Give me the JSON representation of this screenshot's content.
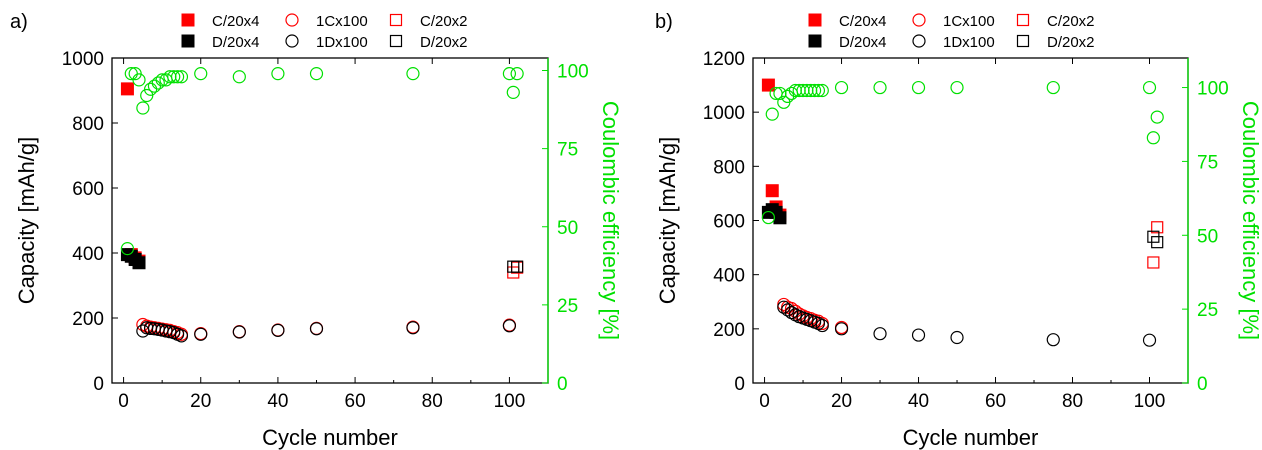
{
  "colors": {
    "red": "#ff0000",
    "black": "#000000",
    "green": "#00e000"
  },
  "chart_data": [
    {
      "type": "scatter",
      "panel_label": "a)",
      "xlabel": "Cycle number",
      "ylabel": "Capacity [mAh/g]",
      "y2label": "Coulombic efficiency [%]",
      "xlim": [
        -3,
        110
      ],
      "ylim": [
        0,
        1000
      ],
      "y2lim": [
        0,
        104
      ],
      "xticks": [
        0,
        20,
        40,
        60,
        80,
        100
      ],
      "yticks": [
        0,
        200,
        400,
        600,
        800,
        1000
      ],
      "y2ticks": [
        0,
        25,
        50,
        75,
        100
      ],
      "legend": [
        "C/20x4",
        "1Cx100",
        "C/20x2",
        "D/20x4",
        "1Dx100",
        "D/20x2"
      ],
      "series": [
        {
          "name": "C/20x4",
          "marker": "square-filled",
          "color": "red",
          "axis": "left",
          "points": [
            [
              1,
              905
            ],
            [
              2,
              395
            ],
            [
              3,
              385
            ],
            [
              4,
              375
            ]
          ]
        },
        {
          "name": "D/20x4",
          "marker": "square-filled",
          "color": "black",
          "axis": "left",
          "points": [
            [
              1,
              395
            ],
            [
              2,
              390
            ],
            [
              3,
              380
            ],
            [
              4,
              370
            ]
          ]
        },
        {
          "name": "1Cx100",
          "marker": "circle-open",
          "color": "red",
          "axis": "left",
          "points": [
            [
              5,
              180
            ],
            [
              6,
              175
            ],
            [
              7,
              172
            ],
            [
              8,
              170
            ],
            [
              9,
              168
            ],
            [
              10,
              166
            ],
            [
              11,
              164
            ],
            [
              12,
              162
            ],
            [
              13,
              158
            ],
            [
              14,
              155
            ],
            [
              15,
              150
            ],
            [
              20,
              152
            ],
            [
              30,
              158
            ],
            [
              40,
              163
            ],
            [
              50,
              168
            ],
            [
              75,
              172
            ],
            [
              100,
              178
            ]
          ]
        },
        {
          "name": "1Dx100",
          "marker": "circle-open",
          "color": "black",
          "axis": "left",
          "points": [
            [
              5,
              160
            ],
            [
              6,
              170
            ],
            [
              7,
              168
            ],
            [
              8,
              167
            ],
            [
              9,
              165
            ],
            [
              10,
              163
            ],
            [
              11,
              160
            ],
            [
              12,
              158
            ],
            [
              13,
              155
            ],
            [
              14,
              150
            ],
            [
              15,
              145
            ],
            [
              20,
              150
            ],
            [
              30,
              157
            ],
            [
              40,
              162
            ],
            [
              50,
              167
            ],
            [
              75,
              170
            ],
            [
              100,
              176
            ]
          ]
        },
        {
          "name": "C/20x2",
          "marker": "square-open",
          "color": "red",
          "axis": "left",
          "points": [
            [
              101,
              340
            ],
            [
              102,
              355
            ]
          ]
        },
        {
          "name": "D/20x2",
          "marker": "square-open",
          "color": "black",
          "axis": "left",
          "points": [
            [
              101,
              358
            ],
            [
              102,
              358
            ]
          ]
        },
        {
          "name": "",
          "marker": "circle-open",
          "color": "green",
          "axis": "right",
          "points": [
            [
              1,
              43
            ],
            [
              2,
              99
            ],
            [
              3,
              99
            ],
            [
              4,
              97
            ],
            [
              5,
              88
            ],
            [
              6,
              92
            ],
            [
              7,
              94
            ],
            [
              8,
              95
            ],
            [
              9,
              96
            ],
            [
              10,
              97
            ],
            [
              11,
              97
            ],
            [
              12,
              98
            ],
            [
              13,
              98
            ],
            [
              14,
              98
            ],
            [
              15,
              98
            ],
            [
              20,
              99
            ],
            [
              30,
              98
            ],
            [
              40,
              99
            ],
            [
              50,
              99
            ],
            [
              75,
              99
            ],
            [
              100,
              99
            ],
            [
              101,
              93
            ],
            [
              102,
              99
            ]
          ]
        }
      ]
    },
    {
      "type": "scatter",
      "panel_label": "b)",
      "xlabel": "Cycle number",
      "ylabel": "Capacity [mAh/g]",
      "y2label": "Coulombic efficiency [%]",
      "xlim": [
        -3,
        110
      ],
      "ylim": [
        0,
        1200
      ],
      "y2lim": [
        0,
        110
      ],
      "xticks": [
        0,
        20,
        40,
        60,
        80,
        100
      ],
      "yticks": [
        0,
        200,
        400,
        600,
        800,
        1000,
        1200
      ],
      "y2ticks": [
        0,
        25,
        50,
        75,
        100
      ],
      "legend": [
        "C/20x4",
        "1Cx100",
        "C/20x2",
        "D/20x4",
        "1Dx100",
        "D/20x2"
      ],
      "series": [
        {
          "name": "C/20x4",
          "marker": "square-filled",
          "color": "red",
          "axis": "left",
          "points": [
            [
              1,
              1100
            ],
            [
              2,
              710
            ],
            [
              3,
              650
            ],
            [
              4,
              620
            ]
          ]
        },
        {
          "name": "D/20x4",
          "marker": "square-filled",
          "color": "black",
          "axis": "left",
          "points": [
            [
              1,
              630
            ],
            [
              2,
              640
            ],
            [
              3,
              630
            ],
            [
              4,
              610
            ]
          ]
        },
        {
          "name": "1Cx100",
          "marker": "circle-open",
          "color": "red",
          "axis": "left",
          "points": [
            [
              5,
              290
            ],
            [
              6,
              280
            ],
            [
              7,
              275
            ],
            [
              8,
              265
            ],
            [
              9,
              255
            ],
            [
              10,
              248
            ],
            [
              11,
              242
            ],
            [
              12,
              238
            ],
            [
              13,
              232
            ],
            [
              14,
              228
            ],
            [
              15,
              220
            ],
            [
              20,
              205
            ]
          ]
        },
        {
          "name": "1Dx100",
          "marker": "circle-open",
          "color": "black",
          "axis": "left",
          "points": [
            [
              5,
              280
            ],
            [
              6,
              270
            ],
            [
              7,
              260
            ],
            [
              8,
              252
            ],
            [
              9,
              245
            ],
            [
              10,
              240
            ],
            [
              11,
              235
            ],
            [
              12,
              230
            ],
            [
              13,
              225
            ],
            [
              14,
              220
            ],
            [
              15,
              212
            ],
            [
              20,
              200
            ],
            [
              30,
              182
            ],
            [
              40,
              177
            ],
            [
              50,
              168
            ],
            [
              75,
              160
            ],
            [
              100,
              158
            ]
          ]
        },
        {
          "name": "C/20x2",
          "marker": "square-open",
          "color": "red",
          "axis": "left",
          "points": [
            [
              101,
              445
            ],
            [
              102,
              575
            ]
          ]
        },
        {
          "name": "D/20x2",
          "marker": "square-open",
          "color": "black",
          "axis": "left",
          "points": [
            [
              101,
              540
            ],
            [
              102,
              520
            ]
          ]
        },
        {
          "name": "",
          "marker": "circle-open",
          "color": "green",
          "axis": "right",
          "points": [
            [
              1,
              56
            ],
            [
              2,
              91
            ],
            [
              3,
              98
            ],
            [
              4,
              98
            ],
            [
              5,
              95
            ],
            [
              6,
              97
            ],
            [
              7,
              98
            ],
            [
              8,
              99
            ],
            [
              9,
              99
            ],
            [
              10,
              99
            ],
            [
              11,
              99
            ],
            [
              12,
              99
            ],
            [
              13,
              99
            ],
            [
              14,
              99
            ],
            [
              15,
              99
            ],
            [
              20,
              100
            ],
            [
              30,
              100
            ],
            [
              40,
              100
            ],
            [
              50,
              100
            ],
            [
              75,
              100
            ],
            [
              100,
              100
            ],
            [
              101,
              83
            ],
            [
              102,
              90
            ]
          ]
        }
      ]
    }
  ]
}
